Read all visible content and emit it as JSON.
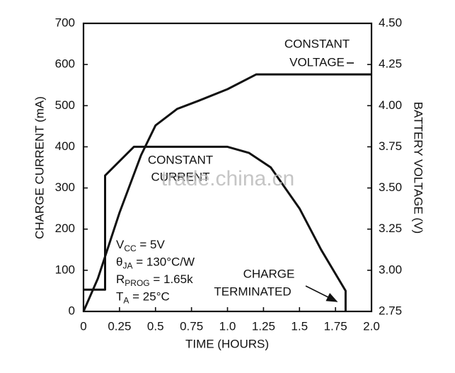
{
  "chart_data": {
    "type": "line",
    "xlabel": "TIME (HOURS)",
    "ylabel": "CHARGE CURRENT (mA)",
    "y2label": "BATTERY VOLTAGE (V)",
    "xlim": [
      0,
      2.0
    ],
    "xticks": [
      0,
      0.25,
      0.5,
      0.75,
      {
        "value": 1.0,
        "label": "1.0"
      },
      1.25,
      1.5,
      1.75,
      {
        "value": 2.0,
        "label": "2.0"
      }
    ],
    "ylim": [
      0,
      700
    ],
    "yticks": [
      0,
      100,
      200,
      300,
      400,
      500,
      600,
      700
    ],
    "y2lim": [
      2.75,
      4.5
    ],
    "y2ticks": [
      2.75,
      {
        "value": 3.0,
        "label": "3.00"
      },
      3.25,
      {
        "value": 3.5,
        "label": "3.50"
      },
      3.75,
      {
        "value": 4.0,
        "label": "4.00"
      },
      4.25,
      {
        "value": 4.5,
        "label": "4.50"
      }
    ],
    "grid": false,
    "color": "#111111",
    "series": [
      {
        "x": [
          0,
          0.15,
          0.15,
          0.35,
          1.0,
          1.15,
          1.3,
          1.5,
          1.65,
          1.82,
          1.82
        ],
        "values": [
          53,
          53,
          330,
          400,
          400,
          385,
          350,
          250,
          150,
          50,
          0
        ]
      },
      {
        "axis": "y2",
        "x": [
          0,
          0.1,
          0.25,
          0.4,
          0.5,
          0.65,
          0.8,
          1.0,
          1.2,
          2.0
        ],
        "values": [
          2.75,
          2.95,
          3.35,
          3.7,
          3.88,
          3.98,
          4.03,
          4.1,
          4.19,
          4.19
        ]
      }
    ],
    "annotations": [
      {
        "lines": [
          "CONSTANT",
          "VOLTAGE"
        ]
      },
      {
        "lines": [
          "CONSTANT",
          "CURRENT"
        ]
      },
      {
        "lines": [
          "CHARGE",
          "TERMINATED"
        ]
      }
    ],
    "conditions": [
      {
        "base": "V",
        "sub": "CC",
        "rest": " = 5V"
      },
      {
        "base": "θ",
        "sub": "JA",
        "rest": " = 130°C/W"
      },
      {
        "base": "R",
        "sub": "PROG",
        "rest": " = 1.65k"
      },
      {
        "base": "T",
        "sub": "A",
        "rest": " = 25°C"
      }
    ],
    "watermark": "trade.china.cn"
  }
}
